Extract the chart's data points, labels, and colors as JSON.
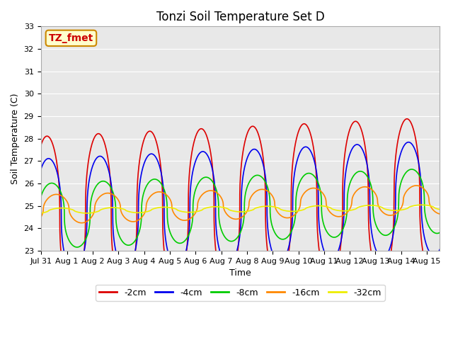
{
  "title": "Tonzi Soil Temperature Set D",
  "xlabel": "Time",
  "ylabel": "Soil Temperature (C)",
  "ylim": [
    23.0,
    33.0
  ],
  "yticks": [
    23.0,
    24.0,
    25.0,
    26.0,
    27.0,
    28.0,
    29.0,
    30.0,
    31.0,
    32.0,
    33.0
  ],
  "xlim_days": [
    -0.02,
    15.5
  ],
  "xtick_labels": [
    "Jul 31",
    "Aug 1",
    "Aug 2",
    "Aug 3",
    "Aug 4",
    "Aug 5",
    "Aug 6",
    "Aug 7",
    "Aug 8",
    "Aug 9",
    "Aug 10",
    "Aug 11",
    "Aug 12",
    "Aug 13",
    "Aug 14",
    "Aug 15"
  ],
  "xtick_positions": [
    0,
    1,
    2,
    3,
    4,
    5,
    6,
    7,
    8,
    9,
    10,
    11,
    12,
    13,
    14,
    15
  ],
  "legend_order": [
    "-2cm",
    "-4cm",
    "-8cm",
    "-16cm",
    "-32cm"
  ],
  "params": {
    "-2cm": {
      "color": "#DD0000",
      "lw": 1.2,
      "base": 24.55,
      "amp": 3.55,
      "phase": -0.28,
      "trend": 0.055,
      "sharpness": 2.5
    },
    "-4cm": {
      "color": "#0000EE",
      "lw": 1.2,
      "base": 24.55,
      "amp": 2.55,
      "phase": -0.22,
      "trend": 0.052,
      "sharpness": 2.5
    },
    "-8cm": {
      "color": "#00CC00",
      "lw": 1.2,
      "base": 24.55,
      "amp": 1.45,
      "phase": -0.1,
      "trend": 0.044,
      "sharpness": 2.5
    },
    "-16cm": {
      "color": "#FF8800",
      "lw": 1.2,
      "base": 24.85,
      "amp": 0.65,
      "phase": 0.08,
      "trend": 0.028,
      "sharpness": 2.0
    },
    "-32cm": {
      "color": "#EEEE00",
      "lw": 1.2,
      "base": 24.78,
      "amp": 0.12,
      "phase": 0.28,
      "trend": 0.01,
      "sharpness": 1.5
    }
  },
  "label_box": {
    "text": "TZ_fmet",
    "fontsize": 10,
    "color": "#CC0000",
    "bg": "#FFFFCC",
    "border": "#CC8800"
  },
  "bg_color": "#E8E8E8",
  "fig_bg": "#FFFFFF",
  "title_fontsize": 12,
  "axis_fontsize": 9,
  "tick_fontsize": 8
}
